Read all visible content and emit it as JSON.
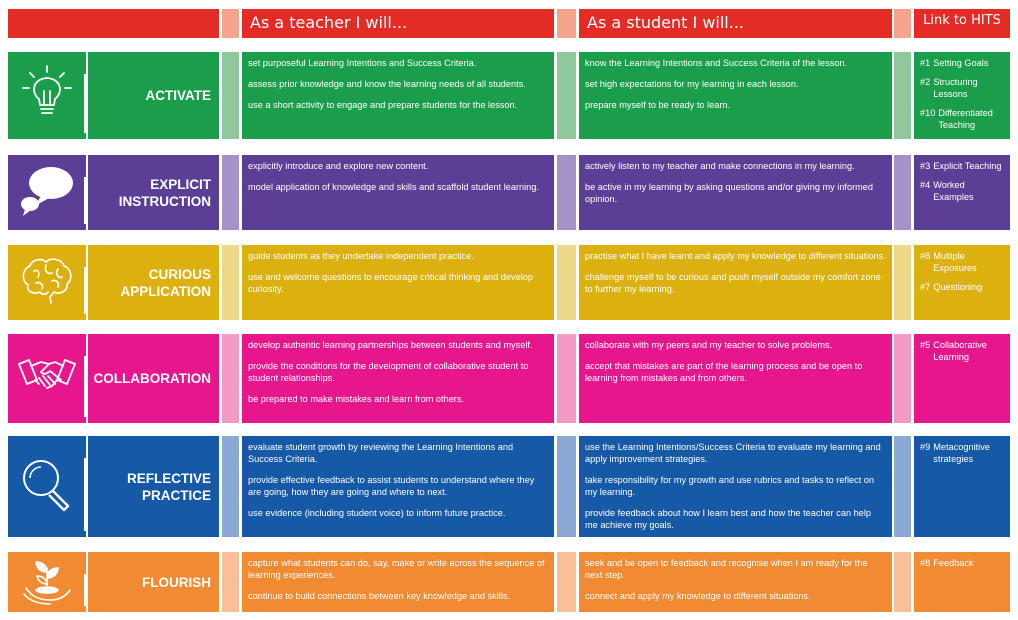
{
  "header": {
    "teacher": "As a teacher I will...",
    "student": "As a student I will...",
    "hits": "Link to HITS"
  },
  "colors": {
    "header": "#e42b26",
    "activate": "#1a9e4b",
    "activate_light": "#8fc89d",
    "explicit": "#5b3f96",
    "explicit_light": "#a393c8",
    "curious": "#dcb10f",
    "curious_light": "#eed88a",
    "collaboration": "#e6178c",
    "collaboration_light": "#f29bc6",
    "reflective": "#1559a7",
    "reflective_light": "#8aa9d5",
    "flourish": "#f08a33",
    "flourish_light": "#f7c096"
  },
  "rows": [
    {
      "key": "activate",
      "icon": "lightbulb-icon",
      "label": [
        "ACTIVATE"
      ],
      "teacher": [
        "set purposeful Learning Intentions and Success Criteria.",
        "assess prior knowledge and know the learning needs of all students.",
        "use a short activity to engage and prepare students for the lesson."
      ],
      "student": [
        "know the Learning Intentions and Success Criteria of the lesson.",
        "set high expectations for my learning in each lesson.",
        "prepare myself to be ready to learn."
      ],
      "hits": [
        {
          "n": "#1",
          "t": "Setting Goals"
        },
        {
          "n": "#2",
          "t": "Structuring Lessons"
        },
        {
          "n": "#10",
          "t": "Differentiated Teaching"
        }
      ]
    },
    {
      "key": "explicit",
      "icon": "speech-bubbles-icon",
      "label": [
        "EXPLICIT",
        "INSTRUCTION"
      ],
      "teacher": [
        "explicitly introduce and explore new content.",
        "model application of knowledge and skills and scaffold student learning."
      ],
      "student": [
        "actively listen to my teacher and make connections in my learning.",
        "be active in my learning by asking questions and/or giving my informed opinion."
      ],
      "hits": [
        {
          "n": "#3",
          "t": "Explicit Teaching"
        },
        {
          "n": "#4",
          "t": "Worked Examples"
        }
      ]
    },
    {
      "key": "curious",
      "icon": "brain-icon",
      "label": [
        "CURIOUS",
        "APPLICATION"
      ],
      "teacher": [
        "guide students as they undertake independent practice.",
        "use and welcome questions to encourage critical thinking and develop curiosity."
      ],
      "student": [
        "practise what I have learnt and apply my knowledge to different situations.",
        "challenge myself to be curious and push myself outside my comfort zone to further my learning."
      ],
      "hits": [
        {
          "n": "#6",
          "t": "Multiple Exposures"
        },
        {
          "n": "#7",
          "t": "Questioning"
        }
      ]
    },
    {
      "key": "collaboration",
      "icon": "handshake-icon",
      "label": [
        "COLLABORATION"
      ],
      "teacher": [
        "develop authentic learning partnerships between students and myself.",
        "provide the conditions for the development of collaborative student to student relationships.",
        "be prepared to make mistakes and learn from others."
      ],
      "student": [
        "collaborate with my peers and my teacher to solve problems.",
        "accept that mistakes are part of the learning process and be open to learning from mistakes and from others."
      ],
      "hits": [
        {
          "n": "#5",
          "t": "Collaborative Learning"
        }
      ]
    },
    {
      "key": "reflective",
      "icon": "magnifier-icon",
      "label": [
        "REFLECTIVE",
        "PRACTICE"
      ],
      "teacher": [
        "evaluate student growth by reviewing the Learning Intentions and Success Criteria.",
        "provide effective feedback to assist students to understand where they are going, how they are going and where to next.",
        "use evidence (including student voice) to inform future practice."
      ],
      "student": [
        "use the Learning Intentions/Success Criteria to evaluate my learning and apply improvement strategies.",
        "take responsibility for my growth and use rubrics and tasks to reflect on my learning.",
        "provide feedback about how I learn best and how the teacher can help me achieve my goals."
      ],
      "hits": [
        {
          "n": "#9",
          "t": "Metacognitive strategies"
        }
      ]
    },
    {
      "key": "flourish",
      "icon": "plant-in-hand-icon",
      "label": [
        "FLOURISH"
      ],
      "teacher": [
        "capture what students can do, say, make or write across the sequence of learning experiences.",
        "continue to build connections between key knowledge and skills."
      ],
      "student": [
        "seek and be open to feedback and recognise when I am ready for the next step.",
        "connect and apply my knowledge to different situations."
      ],
      "hits": [
        {
          "n": "#8",
          "t": "Feedback"
        }
      ]
    }
  ]
}
